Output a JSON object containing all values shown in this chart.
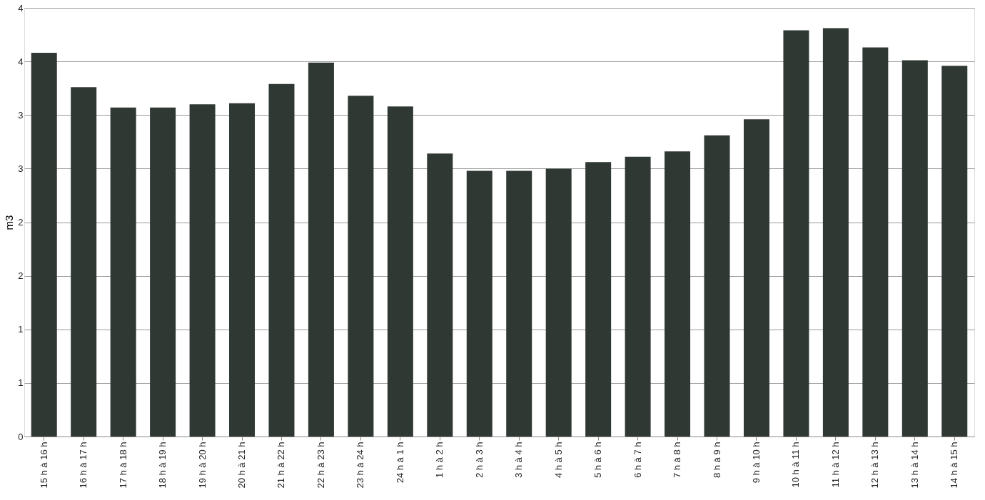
{
  "chart_data": {
    "type": "bar",
    "ylabel": "m3",
    "categories": [
      "15 h à 16 h",
      "16 h à 17 h",
      "17 h à 18 h",
      "18 h à 19 h",
      "19 h à 20 h",
      "20 h à 21 h",
      "21 h à 22 h",
      "22 h à 23 h",
      "23 h à 24 h",
      "24 h à 1 h",
      "1 h à 2 h",
      "2 h à 3 h",
      "3 h à 4 h",
      "4 h à 5 h",
      "5 h à 6 h",
      "6 h à 7 h",
      "7 h à 8 h",
      "8 h à 9 h",
      "9 h à 10 h",
      "10 h à 11 h",
      "11 h à 12 h",
      "12 h à 13 h",
      "13 h à 14 h",
      "14 h à 15 h"
    ],
    "values": [
      3.58,
      3.26,
      3.07,
      3.07,
      3.1,
      3.11,
      3.29,
      3.49,
      3.18,
      3.08,
      2.64,
      2.48,
      2.48,
      2.5,
      2.56,
      2.61,
      2.66,
      2.81,
      2.96,
      3.79,
      3.81,
      3.63,
      3.51,
      3.46
    ],
    "color": "#2f3832",
    "ylim": [
      0,
      4
    ],
    "yticks": [
      0,
      {
        "value": 0.5,
        "label": "1"
      },
      1,
      {
        "value": 1.5,
        "label": "2"
      },
      2,
      {
        "value": 2.5,
        "label": "3"
      },
      3,
      {
        "value": 3.5,
        "label": "4"
      },
      4
    ],
    "grid": "y"
  }
}
